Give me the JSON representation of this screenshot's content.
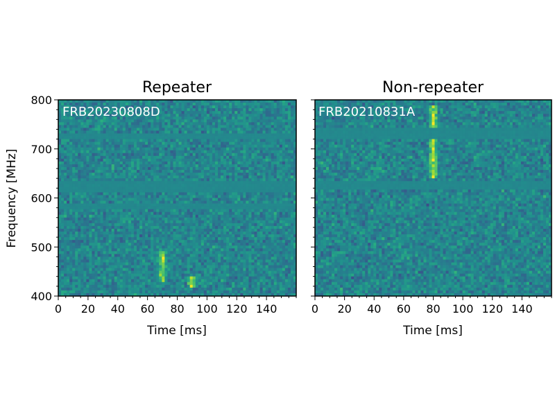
{
  "chart_data": [
    {
      "type": "heatmap",
      "title": "Repeater",
      "annotation": "FRB20230808D",
      "xlabel": "Time [ms]",
      "ylabel": "Frequency [MHz]",
      "xlim": [
        0,
        160
      ],
      "ylim": [
        400,
        800
      ],
      "xticks": [
        0,
        20,
        40,
        60,
        80,
        100,
        120,
        140
      ],
      "yticks": [
        400,
        500,
        600,
        700,
        800
      ],
      "colormap": "viridis",
      "masked_bands_mhz": [
        [
          720,
          732
        ],
        [
          612,
          632
        ],
        [
          580,
          590
        ]
      ],
      "signal_components": [
        {
          "time_ms": 70,
          "freq_low_mhz": 430,
          "freq_high_mhz": 490
        },
        {
          "time_ms": 90,
          "freq_low_mhz": 415,
          "freq_high_mhz": 440
        }
      ]
    },
    {
      "type": "heatmap",
      "title": "Non-repeater",
      "annotation": "FRB20210831A",
      "xlabel": "Time [ms]",
      "ylabel": "",
      "xlim": [
        0,
        160
      ],
      "ylim": [
        400,
        800
      ],
      "xticks": [
        0,
        20,
        40,
        60,
        80,
        100,
        120,
        140
      ],
      "yticks": [
        400,
        500,
        600,
        700,
        800
      ],
      "colormap": "viridis",
      "masked_bands_mhz": [
        [
          720,
          745
        ],
        [
          615,
          632
        ]
      ],
      "signal_components": [
        {
          "time_ms": 80,
          "freq_low_mhz": 640,
          "freq_high_mhz": 790
        }
      ]
    }
  ]
}
